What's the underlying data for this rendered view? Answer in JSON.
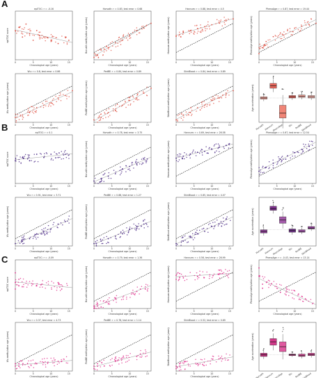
{
  "panels": [
    {
      "letter": "A",
      "point_color": "#e0574a",
      "box_colors": [
        "#f4a39b",
        "#e8675c",
        "#f08577",
        "#e06055",
        "#f3a297",
        "#f4b0a7"
      ],
      "plots": [
        {
          "title": "epiTOC: r = -0.16",
          "ylabel": "epiTOC score"
        },
        {
          "title": "Horvath: r = 0.83, test error = 0.68",
          "ylabel": "Horvath methylation age (years)"
        },
        {
          "title": "Hannum: r = 0.88, test error = 4.5",
          "ylabel": "Hannum methylation age (years)"
        },
        {
          "title": "PhenoAge: r = 0.87, test error = 19.44",
          "ylabel": "PhenoAge methylation age (years)"
        },
        {
          "title": "Wu: r = 0.8, test error = 0.86",
          "ylabel": "Wu methylation age (years)"
        },
        {
          "title": "PedBE: r = 0.84, test error = 0.89",
          "ylabel": "PedBE methylation age (years)"
        },
        {
          "title": "SkinBlood: r = 0.84, test error = 0.89",
          "ylabel": "SkinBlood methylation age (years)"
        }
      ]
    },
    {
      "letter": "B",
      "point_color": "#4b2a86",
      "box_colors": [
        "#8a3d93",
        "#7a2f8a",
        "#a35aa9",
        "#6a2f83",
        "#9b4ea2",
        "#8e3e96"
      ],
      "plots": [
        {
          "title": "epiTOC: r = 0.1",
          "ylabel": "epiTOC score"
        },
        {
          "title": "Horvath: r = 0.78, test error = 3.75",
          "ylabel": "Horvath methylation age (years)"
        },
        {
          "title": "Hannum: r = 0.69, test error = 26.58",
          "ylabel": "Hannum methylation age (years)"
        },
        {
          "title": "PhenoAge: r = 0.67, test error = 12.54",
          "ylabel": "PhenoAge methylation age (years)"
        },
        {
          "title": "Wu: r = 0.91, test error = 3.71",
          "ylabel": "Wu methylation age (years)"
        },
        {
          "title": "PedBE: r = 0.88, test error = 1.27",
          "ylabel": "PedBE methylation age (years)"
        },
        {
          "title": "SkinBlood: r = 0.85, test error = 4.07",
          "ylabel": "SkinBlood methylation age (years)"
        }
      ]
    },
    {
      "letter": "C",
      "point_color": "#e0358f",
      "box_colors": [
        "#c2317f",
        "#d3388a",
        "#e05aa0",
        "#b02d78",
        "#d04a94",
        "#c8408b"
      ],
      "plots": [
        {
          "title": "epiTOC: r = -0.09",
          "ylabel": "epiTOC score"
        },
        {
          "title": "Horvath: r = 0.79, test error = 1.36",
          "ylabel": "Horvath methylation age (years)"
        },
        {
          "title": "Hannum: r = 0.56, test error = 26.99",
          "ylabel": "Hannum methylation age (years)"
        },
        {
          "title": "PhenoAge: r = -0.43, test error = 13.14",
          "ylabel": "PhenoAge methylation age (years)"
        },
        {
          "title": "Wu: r = 0.37, test error = 4.73",
          "ylabel": "Wu methylation age (years)"
        },
        {
          "title": "PedBE: r = 0.78, test error = 1.14",
          "ylabel": "PedBE methylation age (years)"
        },
        {
          "title": "SkinBlood: r = 0.52, test error = 0.69",
          "ylabel": "SkinBlood methylation age (years)"
        }
      ]
    }
  ],
  "common": {
    "xlabel": "Chronological age (years)",
    "box_ylabel": "Age acceleration (years)",
    "box_categories": [
      "Horvath",
      "Hannum",
      "PhenoAge",
      "Wu",
      "PedBE",
      "SkinBlood"
    ]
  },
  "chart_data": [
    {
      "type": "scatter",
      "panel": "A",
      "xlabel": "Chronological age (years)",
      "plots": [
        {
          "name": "epiTOC",
          "r": -0.16,
          "xlim": [
            0,
            16
          ],
          "ylim": [
            0.05,
            0.2
          ],
          "x": [
            0,
            1,
            2,
            3,
            4,
            5,
            6,
            8,
            10,
            12,
            14,
            15
          ],
          "y": [
            0.14,
            0.15,
            0.12,
            0.16,
            0.13,
            0.11,
            0.14,
            0.12,
            0.11,
            0.1,
            0.12,
            0.11
          ]
        },
        {
          "name": "Horvath",
          "r": 0.83,
          "xlim": [
            0,
            16
          ],
          "ylim": [
            0,
            20
          ],
          "x": [
            0,
            1,
            2,
            4,
            6,
            8,
            10,
            12,
            14,
            16
          ],
          "y": [
            1,
            2,
            4,
            5,
            7,
            8,
            10,
            12,
            13,
            15
          ]
        },
        {
          "name": "Hannum",
          "r": 0.88,
          "xlim": [
            0,
            16
          ],
          "ylim": [
            0,
            50
          ],
          "x": [
            0,
            1,
            2,
            4,
            6,
            8,
            10,
            12,
            14,
            16
          ],
          "y": [
            24,
            26,
            28,
            30,
            32,
            34,
            36,
            38,
            40,
            42
          ]
        },
        {
          "name": "PhenoAge",
          "r": 0.87,
          "xlim": [
            0,
            16
          ],
          "ylim": [
            -40,
            40
          ],
          "x": [
            0,
            1,
            2,
            4,
            6,
            8,
            10,
            12,
            14,
            16
          ],
          "y": [
            -30,
            -20,
            -10,
            -2,
            4,
            8,
            12,
            15,
            18,
            20
          ]
        },
        {
          "name": "Wu",
          "r": 0.8,
          "xlim": [
            0,
            16
          ],
          "ylim": [
            0,
            20
          ],
          "x": [
            0,
            2,
            4,
            6,
            8,
            10,
            12,
            14,
            16
          ],
          "y": [
            2,
            3,
            4,
            6,
            7,
            8,
            10,
            11,
            13
          ]
        },
        {
          "name": "PedBE",
          "r": 0.84,
          "xlim": [
            0,
            16
          ],
          "ylim": [
            0,
            20
          ],
          "x": [
            0,
            2,
            4,
            6,
            8,
            10,
            12,
            14,
            16
          ],
          "y": [
            1,
            2,
            4,
            5,
            7,
            9,
            10,
            12,
            14
          ]
        },
        {
          "name": "SkinBlood",
          "r": 0.84,
          "xlim": [
            0,
            16
          ],
          "ylim": [
            0,
            20
          ],
          "x": [
            0,
            2,
            4,
            6,
            8,
            10,
            12,
            14,
            16
          ],
          "y": [
            1,
            3,
            4,
            6,
            7,
            9,
            10,
            12,
            13
          ]
        }
      ],
      "box": {
        "categories": [
          "Horvath",
          "Hannum",
          "PhenoAge",
          "Wu",
          "PedBE",
          "SkinBlood"
        ],
        "ylim": [
          -40,
          40
        ],
        "median": [
          0,
          20,
          -25,
          2,
          3,
          2
        ],
        "q1": [
          -2,
          16,
          -33,
          0,
          1,
          0
        ],
        "q3": [
          2,
          24,
          -12,
          4,
          5,
          4
        ]
      }
    },
    {
      "type": "scatter",
      "panel": "B",
      "xlabel": "Chronological age (years)",
      "plots": [
        {
          "name": "epiTOC",
          "r": 0.1,
          "xlim": [
            0,
            16
          ],
          "ylim": [
            0.05,
            0.2
          ],
          "x": [
            0,
            2,
            4,
            6,
            8,
            10,
            12,
            14
          ],
          "y": [
            0.12,
            0.13,
            0.12,
            0.14,
            0.13,
            0.14,
            0.13,
            0.14
          ]
        },
        {
          "name": "Horvath",
          "r": 0.78,
          "xlim": [
            0,
            16
          ],
          "ylim": [
            0,
            20
          ],
          "x": [
            0,
            2,
            4,
            6,
            8,
            10,
            12,
            14
          ],
          "y": [
            1,
            2,
            3,
            4,
            6,
            7,
            8,
            10
          ]
        },
        {
          "name": "Hannum",
          "r": 0.69,
          "xlim": [
            0,
            16
          ],
          "ylim": [
            0,
            50
          ],
          "x": [
            0,
            2,
            4,
            6,
            8,
            10,
            12,
            14
          ],
          "y": [
            26,
            28,
            30,
            32,
            33,
            35,
            37,
            39
          ]
        },
        {
          "name": "PhenoAge",
          "r": 0.67,
          "xlim": [
            0,
            16
          ],
          "ylim": [
            -20,
            40
          ],
          "x": [
            0,
            2,
            4,
            6,
            8,
            10,
            12,
            14
          ],
          "y": [
            -5,
            0,
            5,
            10,
            14,
            18,
            22,
            26
          ]
        },
        {
          "name": "Wu",
          "r": 0.91,
          "xlim": [
            0,
            16
          ],
          "ylim": [
            0,
            20
          ],
          "x": [
            0,
            2,
            4,
            6,
            8,
            10,
            12,
            14
          ],
          "y": [
            1,
            2,
            3,
            5,
            6,
            7,
            9,
            10
          ]
        },
        {
          "name": "PedBE",
          "r": 0.88,
          "xlim": [
            0,
            16
          ],
          "ylim": [
            0,
            20
          ],
          "x": [
            0,
            2,
            4,
            6,
            8,
            10,
            12,
            14
          ],
          "y": [
            1,
            2,
            3,
            4,
            5,
            7,
            8,
            9
          ]
        },
        {
          "name": "SkinBlood",
          "r": 0.85,
          "xlim": [
            0,
            16
          ],
          "ylim": [
            0,
            20
          ],
          "x": [
            0,
            2,
            4,
            6,
            8,
            10,
            12,
            14
          ],
          "y": [
            1,
            2,
            4,
            5,
            6,
            8,
            9,
            11
          ]
        }
      ],
      "box": {
        "categories": [
          "Horvath",
          "Hannum",
          "PhenoAge",
          "Wu",
          "PedBE",
          "SkinBlood"
        ],
        "ylim": [
          -20,
          40
        ],
        "median": [
          -2,
          26,
          12,
          -1,
          -2,
          2
        ],
        "q1": [
          -4,
          24,
          8,
          -3,
          -3,
          1
        ],
        "q3": [
          0,
          29,
          16,
          1,
          0,
          4
        ]
      }
    },
    {
      "type": "scatter",
      "panel": "C",
      "xlabel": "Chronological age (years)",
      "plots": [
        {
          "name": "epiTOC",
          "r": -0.09,
          "xlim": [
            0,
            16
          ],
          "ylim": [
            0.05,
            0.2
          ],
          "x": [
            0,
            0,
            0,
            1,
            1,
            6,
            12,
            13
          ],
          "y": [
            0.16,
            0.13,
            0.11,
            0.14,
            0.12,
            0.12,
            0.13,
            0.11
          ]
        },
        {
          "name": "Horvath",
          "r": 0.79,
          "xlim": [
            0,
            16
          ],
          "ylim": [
            0,
            20
          ],
          "x": [
            0,
            0,
            1,
            1,
            6,
            12,
            13
          ],
          "y": [
            0,
            1,
            1,
            2,
            4,
            7,
            8
          ]
        },
        {
          "name": "Hannum",
          "r": 0.56,
          "xlim": [
            0,
            16
          ],
          "ylim": [
            0,
            50
          ],
          "x": [
            0,
            0,
            1,
            1,
            6,
            12,
            13
          ],
          "y": [
            30,
            34,
            32,
            36,
            33,
            35,
            36
          ]
        },
        {
          "name": "PhenoAge",
          "r": -0.43,
          "xlim": [
            0,
            16
          ],
          "ylim": [
            -20,
            40
          ],
          "x": [
            0,
            0,
            1,
            1,
            6,
            12,
            13
          ],
          "y": [
            20,
            30,
            10,
            5,
            0,
            -5,
            -8
          ]
        },
        {
          "name": "Wu",
          "r": 0.37,
          "xlim": [
            0,
            16
          ],
          "ylim": [
            0,
            20
          ],
          "x": [
            0,
            0,
            1,
            1,
            6,
            12,
            13
          ],
          "y": [
            2,
            3,
            2,
            3,
            3,
            4,
            4
          ]
        },
        {
          "name": "PedBE",
          "r": 0.78,
          "xlim": [
            0,
            16
          ],
          "ylim": [
            0,
            20
          ],
          "x": [
            0,
            0,
            1,
            1,
            6,
            12,
            13
          ],
          "y": [
            1,
            2,
            2,
            3,
            4,
            6,
            7
          ]
        },
        {
          "name": "SkinBlood",
          "r": 0.52,
          "xlim": [
            0,
            16
          ],
          "ylim": [
            0,
            20
          ],
          "x": [
            0,
            0,
            1,
            1,
            6,
            12,
            13
          ],
          "y": [
            1,
            2,
            2,
            3,
            3,
            5,
            5
          ]
        }
      ],
      "box": {
        "categories": [
          "Horvath",
          "Hannum",
          "PhenoAge",
          "Wu",
          "PedBE",
          "SkinBlood"
        ],
        "ylim": [
          -20,
          40
        ],
        "median": [
          0,
          16,
          10,
          0,
          -1,
          0
        ],
        "q1": [
          -2,
          12,
          4,
          -1,
          -2,
          -1
        ],
        "q3": [
          2,
          20,
          16,
          1,
          1,
          2
        ]
      }
    }
  ]
}
